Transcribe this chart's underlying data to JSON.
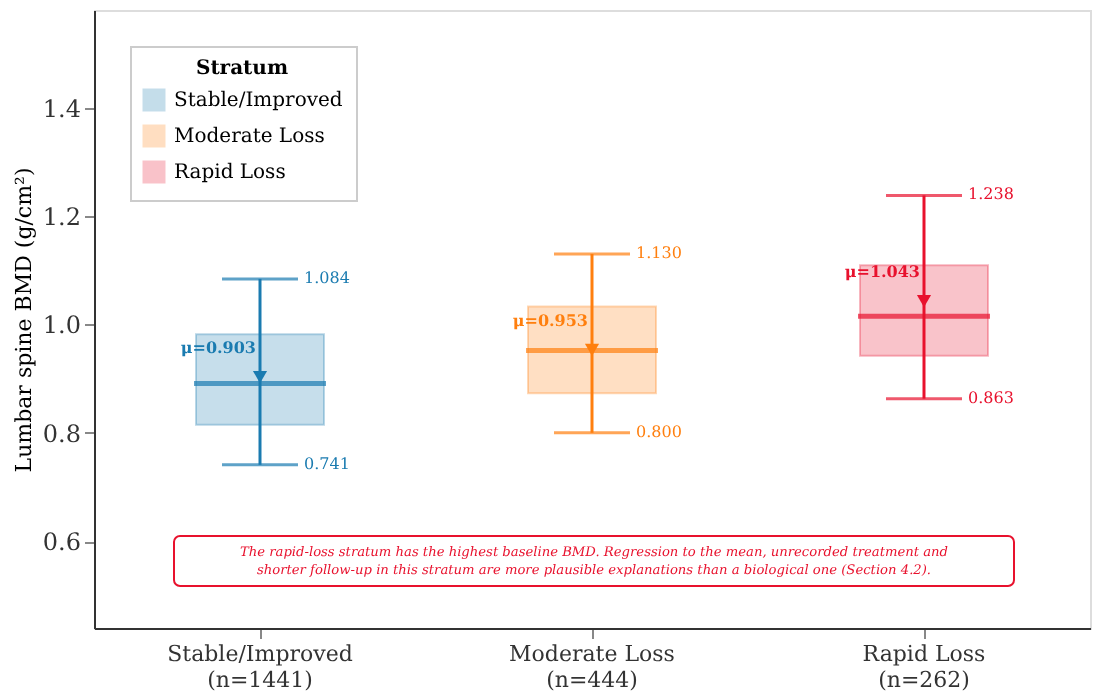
{
  "chart_data": {
    "type": "box",
    "ylabel": "Lumbar spine BMD (g/cm²)",
    "legend_title": "Stratum",
    "legend": "top left",
    "grid": false,
    "categories": [
      "Stable/Improved\n(n=1441)",
      "Moderate Loss\n(n=444)",
      "Rapid Loss\n(n=262)"
    ],
    "ylim": [
      0.44,
      1.58
    ],
    "yticks": [
      0.6,
      0.8,
      {
        "value": 1.0,
        "label": "1.0"
      },
      1.2,
      1.4
    ],
    "series": [
      {
        "name": "Stable/Improved",
        "color": "#1a7bb0",
        "x": [
          "Stable/Improved\n(n=1441)"
        ],
        "boxes": [
          {
            "low": 0.741,
            "q1": 0.815,
            "median": 0.891,
            "q3": 0.982,
            "high": 1.084,
            "mean": 0.903
          }
        ]
      },
      {
        "name": "Moderate Loss",
        "color": "#ff7f0e",
        "x": [
          "Moderate Loss\n(n=444)"
        ],
        "boxes": [
          {
            "low": 0.8,
            "q1": 0.873,
            "median": 0.952,
            "q3": 1.033,
            "high": 1.13,
            "mean": 0.953
          }
        ]
      },
      {
        "name": "Rapid Loss",
        "color": "#e8112d",
        "x": [
          "Rapid Loss\n(n=262)"
        ],
        "boxes": [
          {
            "low": 0.863,
            "q1": 0.942,
            "median": 1.015,
            "q3": 1.109,
            "high": 1.238,
            "mean": 1.043
          }
        ]
      }
    ],
    "annotations": [
      {
        "text": "1.084",
        "x": "Stable/Improved\n(n=1441)",
        "y": 1.084
      },
      {
        "text": "0.741",
        "x": "Stable/Improved\n(n=1441)",
        "y": 0.741
      },
      {
        "text": "μ=0.903",
        "x": "Stable/Improved\n(n=1441)",
        "y": 0.903
      },
      {
        "text": "1.130",
        "x": "Moderate Loss\n(n=444)",
        "y": 1.13
      },
      {
        "text": "0.800",
        "x": "Moderate Loss\n(n=444)",
        "y": 0.8
      },
      {
        "text": "μ=0.953",
        "x": "Moderate Loss\n(n=444)",
        "y": 0.953
      },
      {
        "text": "1.238",
        "x": "Rapid Loss\n(n=262)",
        "y": 1.238
      },
      {
        "text": "0.863",
        "x": "Rapid Loss\n(n=262)",
        "y": 0.863
      },
      {
        "text": "μ=1.043",
        "x": "Rapid Loss\n(n=262)",
        "y": 1.043
      },
      "The rapid-loss stratum has the highest baseline BMD. Regression to the mean, unrecorded treatment and shorter follow-up in this stratum are more plausible explanations than a biological one (Section 4.2)."
    ]
  }
}
